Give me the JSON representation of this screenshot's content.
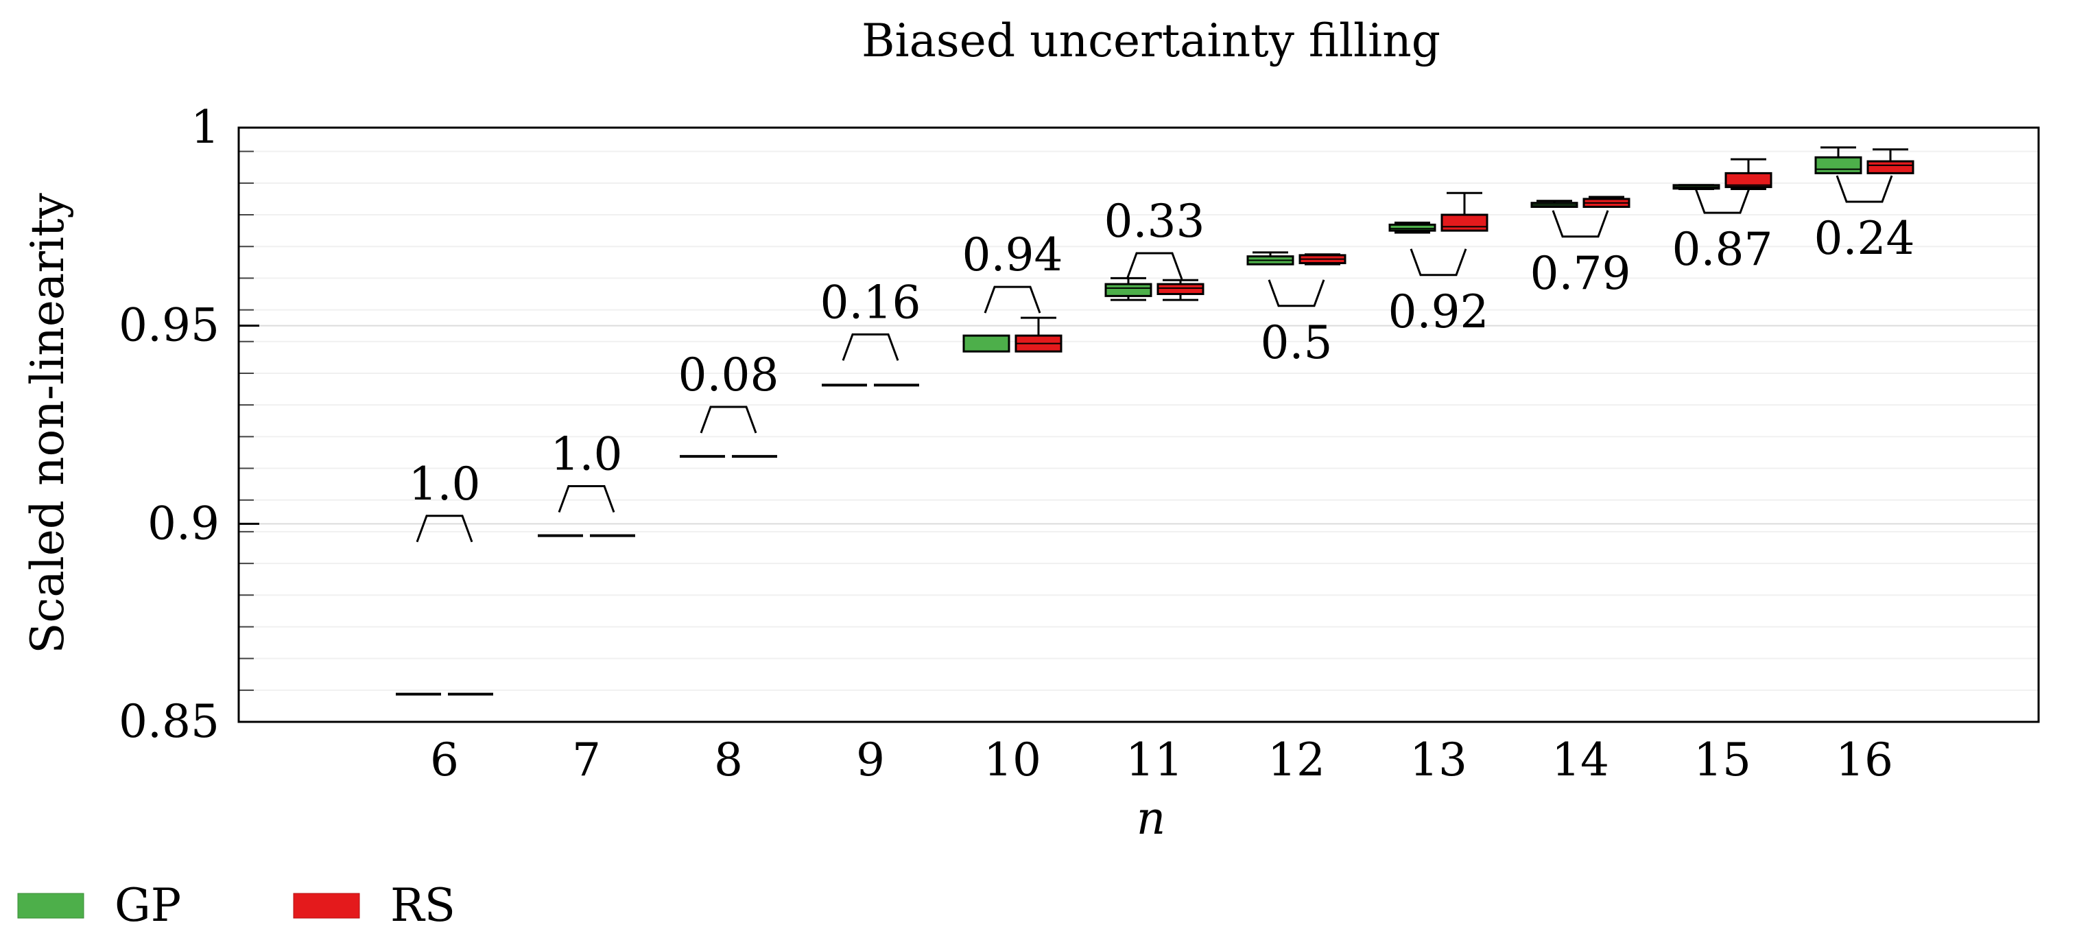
{
  "chart_data": {
    "type": "box",
    "title": "Biased uncertainty filling",
    "xlabel": "n",
    "ylabel": "Scaled non-linearity",
    "ylim": [
      0.85,
      1.0
    ],
    "yticks": [
      0.85,
      0.9,
      0.95,
      1.0
    ],
    "ytick_labels": [
      "0.85",
      "0.9",
      "0.95",
      "1"
    ],
    "minor_ytick_step": 0.008,
    "grid": true,
    "categories": [
      "6",
      "7",
      "8",
      "9",
      "10",
      "11",
      "12",
      "13",
      "14",
      "15",
      "16"
    ],
    "series": [
      {
        "name": "GP",
        "color": "#4daf4a",
        "boxes": [
          {
            "whislo": 0.857,
            "q1": 0.857,
            "med": 0.857,
            "q3": 0.857,
            "whishi": 0.857
          },
          {
            "whislo": 0.897,
            "q1": 0.897,
            "med": 0.897,
            "q3": 0.897,
            "whishi": 0.897
          },
          {
            "whislo": 0.917,
            "q1": 0.917,
            "med": 0.917,
            "q3": 0.917,
            "whishi": 0.917
          },
          {
            "whislo": 0.935,
            "q1": 0.935,
            "med": 0.935,
            "q3": 0.935,
            "whishi": 0.935
          },
          {
            "whislo": 0.9435,
            "q1": 0.9435,
            "med": 0.9435,
            "q3": 0.9475,
            "whishi": 0.9475
          },
          {
            "whislo": 0.9565,
            "q1": 0.9575,
            "med": 0.9595,
            "q3": 0.9605,
            "whishi": 0.962
          },
          {
            "whislo": 0.9655,
            "q1": 0.9655,
            "med": 0.9665,
            "q3": 0.9675,
            "whishi": 0.9685
          },
          {
            "whislo": 0.9735,
            "q1": 0.974,
            "med": 0.9745,
            "q3": 0.9755,
            "whishi": 0.976
          },
          {
            "whislo": 0.98,
            "q1": 0.98,
            "med": 0.9805,
            "q3": 0.981,
            "whishi": 0.9815
          },
          {
            "whislo": 0.9845,
            "q1": 0.9848,
            "med": 0.985,
            "q3": 0.9853,
            "whishi": 0.9855
          },
          {
            "whislo": 0.9885,
            "q1": 0.9885,
            "med": 0.9895,
            "q3": 0.9925,
            "whishi": 0.995
          }
        ]
      },
      {
        "name": "RS",
        "color": "#e41a1c",
        "boxes": [
          {
            "whislo": 0.857,
            "q1": 0.857,
            "med": 0.857,
            "q3": 0.857,
            "whishi": 0.857
          },
          {
            "whislo": 0.897,
            "q1": 0.897,
            "med": 0.897,
            "q3": 0.897,
            "whishi": 0.897
          },
          {
            "whislo": 0.917,
            "q1": 0.917,
            "med": 0.917,
            "q3": 0.917,
            "whishi": 0.917
          },
          {
            "whislo": 0.935,
            "q1": 0.935,
            "med": 0.935,
            "q3": 0.935,
            "whishi": 0.935
          },
          {
            "whislo": 0.9435,
            "q1": 0.9435,
            "med": 0.9455,
            "q3": 0.9475,
            "whishi": 0.952
          },
          {
            "whislo": 0.9565,
            "q1": 0.958,
            "med": 0.9595,
            "q3": 0.9605,
            "whishi": 0.9615
          },
          {
            "whislo": 0.9655,
            "q1": 0.9658,
            "med": 0.9668,
            "q3": 0.9678,
            "whishi": 0.968
          },
          {
            "whislo": 0.974,
            "q1": 0.974,
            "med": 0.975,
            "q3": 0.978,
            "whishi": 0.9835
          },
          {
            "whislo": 0.98,
            "q1": 0.98,
            "med": 0.981,
            "q3": 0.982,
            "whishi": 0.9825
          },
          {
            "whislo": 0.9845,
            "q1": 0.985,
            "med": 0.9855,
            "q3": 0.9885,
            "whishi": 0.992
          },
          {
            "whislo": 0.9885,
            "q1": 0.9885,
            "med": 0.9905,
            "q3": 0.9915,
            "whishi": 0.9945
          }
        ]
      }
    ],
    "p_values": [
      {
        "n": "6",
        "label": "1.0",
        "position": "above",
        "y": 0.902
      },
      {
        "n": "7",
        "label": "1.0",
        "position": "above",
        "y": 0.9095
      },
      {
        "n": "8",
        "label": "0.08",
        "position": "above",
        "y": 0.9295
      },
      {
        "n": "9",
        "label": "0.16",
        "position": "above",
        "y": 0.9478
      },
      {
        "n": "10",
        "label": "0.94",
        "position": "above",
        "y": 0.9598
      },
      {
        "n": "11",
        "label": "0.33",
        "position": "above",
        "y": 0.9683
      },
      {
        "n": "12",
        "label": "0.5",
        "position": "below",
        "y": 0.955
      },
      {
        "n": "13",
        "label": "0.92",
        "position": "below",
        "y": 0.9628
      },
      {
        "n": "14",
        "label": "0.79",
        "position": "below",
        "y": 0.9725
      },
      {
        "n": "15",
        "label": "0.87",
        "position": "below",
        "y": 0.9785
      },
      {
        "n": "16",
        "label": "0.24",
        "position": "below",
        "y": 0.9813
      }
    ],
    "legend": {
      "placement": "bottom-left",
      "entries": [
        {
          "label": "GP",
          "color": "#4daf4a"
        },
        {
          "label": "RS",
          "color": "#e41a1c"
        }
      ]
    }
  }
}
